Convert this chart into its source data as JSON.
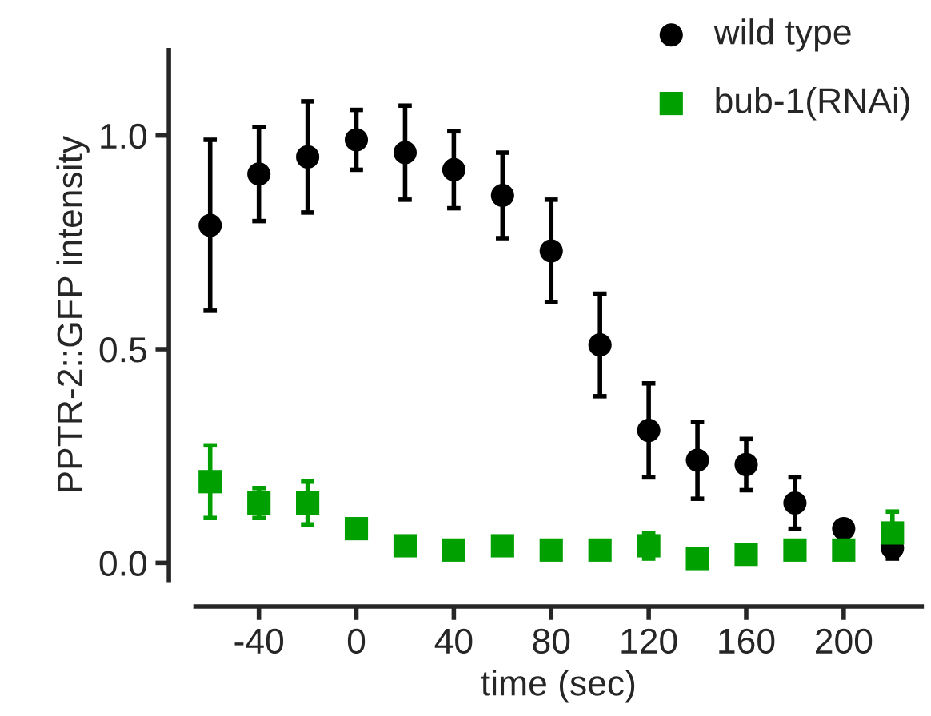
{
  "chart_data": {
    "type": "scatter",
    "xlabel": "time (sec)",
    "ylabel": "PPTR-2::GFP intensity",
    "x": [
      -60,
      -40,
      -20,
      0,
      20,
      40,
      60,
      80,
      100,
      120,
      140,
      160,
      180,
      200,
      220
    ],
    "series": [
      {
        "name": "wild type",
        "color": "#000000",
        "marker": "circle",
        "values": [
          0.79,
          0.91,
          0.95,
          0.99,
          0.96,
          0.92,
          0.86,
          0.73,
          0.51,
          0.31,
          0.24,
          0.23,
          0.14,
          0.08,
          0.035
        ],
        "errors": [
          0.2,
          0.11,
          0.13,
          0.07,
          0.11,
          0.09,
          0.1,
          0.12,
          0.12,
          0.11,
          0.09,
          0.06,
          0.06,
          null,
          0.025
        ]
      },
      {
        "name": "bub-1(RNAi)",
        "color": "#00a000",
        "marker": "square",
        "values": [
          0.19,
          0.14,
          0.14,
          0.08,
          0.04,
          0.03,
          0.04,
          0.03,
          0.03,
          0.04,
          0.01,
          0.02,
          0.03,
          0.03,
          0.07
        ],
        "errors": [
          0.085,
          0.035,
          0.05,
          null,
          null,
          null,
          null,
          null,
          null,
          0.03,
          null,
          null,
          null,
          null,
          0.05
        ]
      }
    ],
    "xlim": [
      -66,
      232
    ],
    "xticks": [
      -40,
      0,
      40,
      80,
      120,
      160,
      200
    ],
    "ylim": [
      -0.04,
      1.2
    ],
    "yticks": [
      {
        "value": 0,
        "label": "0.0"
      },
      {
        "value": 0.5,
        "label": "0.5"
      },
      {
        "value": 1,
        "label": "1.0"
      }
    ],
    "grid": false,
    "legend": "top right"
  }
}
